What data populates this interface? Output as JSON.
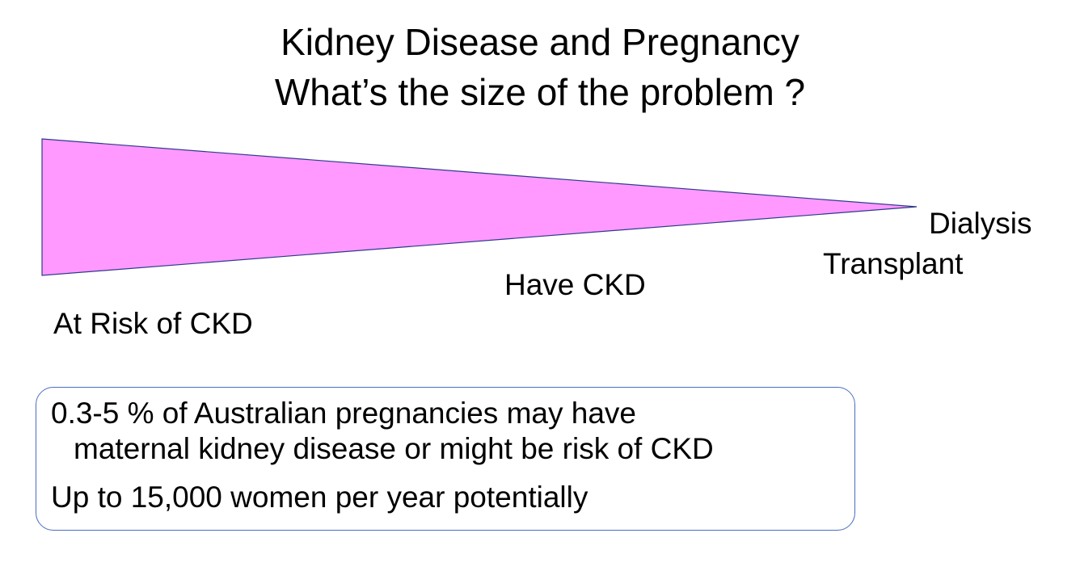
{
  "slide": {
    "title_line1": "Kidney Disease and Pregnancy",
    "title_line2": "What’s the size of the problem ?"
  },
  "diagram": {
    "wedge_fill": "#ff99ff",
    "wedge_stroke": "#2e3a8c",
    "labels": {
      "dialysis": "Dialysis",
      "transplant": "Transplant",
      "have_ckd": "Have CKD",
      "at_risk": "At Risk of CKD"
    }
  },
  "info_box": {
    "border_color": "#4a6cc0",
    "line1": "0.3-5 % of Australian pregnancies may have",
    "line2": "maternal kidney disease or might be risk of CKD",
    "line3": "Up to 15,000 women per year potentially"
  }
}
